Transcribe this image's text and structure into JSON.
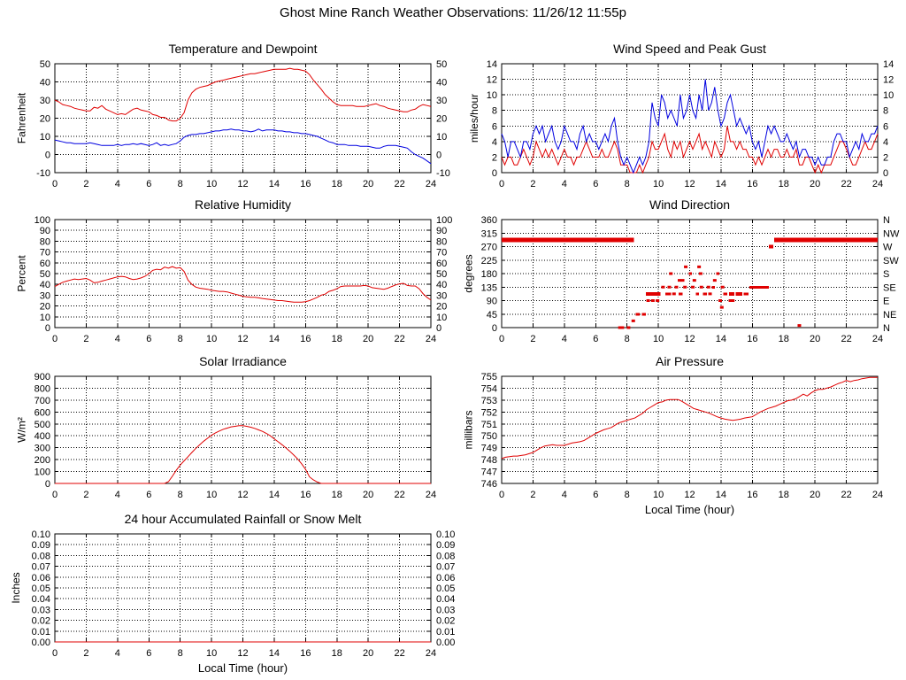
{
  "page": {
    "title": "Ghost Mine Ranch Weather Observations: 11/26/12 11:55p",
    "background": "#ffffff"
  },
  "colors": {
    "red": "#e00000",
    "blue": "#0000e0",
    "axis": "#000000"
  },
  "chart_data": [
    {
      "id": "temperature-dewpoint",
      "type": "line",
      "title": "Temperature and Dewpoint",
      "ylabel": "Fahrenheit",
      "x": {
        "min": 0,
        "max": 24,
        "tick_step": 2
      },
      "y": {
        "min": -10,
        "max": 50,
        "tick_step": 10,
        "decimals": 0
      },
      "mirror": true,
      "grid": true,
      "series": [
        {
          "name": "temperature",
          "color": "#e00000",
          "x_start": 0,
          "x_step": 0.25,
          "values": [
            30,
            29,
            27.5,
            27,
            26.5,
            25.5,
            25,
            24.5,
            24,
            24,
            26,
            25.5,
            27,
            25,
            24,
            23,
            22,
            22.5,
            22,
            23.5,
            25,
            25.5,
            24.5,
            24,
            23.5,
            22,
            21.5,
            20.5,
            20.5,
            19,
            18.5,
            18.5,
            20,
            23,
            30,
            34,
            36,
            37,
            37.5,
            38,
            39,
            40,
            40.5,
            41,
            41.5,
            42,
            42.5,
            43,
            43.5,
            44,
            44.5,
            44.5,
            45,
            45.5,
            46,
            46.5,
            47,
            47,
            47,
            47,
            47.5,
            47,
            47,
            46.5,
            46,
            44,
            41,
            38.5,
            36,
            33,
            31,
            29,
            27.5,
            27,
            27,
            27,
            27,
            26.5,
            26.5,
            26.5,
            27,
            27.5,
            28,
            27,
            26.5,
            25.5,
            25,
            24.5,
            24,
            23.5,
            23.5,
            24.5,
            25,
            26.5,
            27.5,
            27,
            26.5
          ]
        },
        {
          "name": "dewpoint",
          "color": "#0000e0",
          "x_start": 0,
          "x_step": 0.25,
          "values": [
            8,
            7.5,
            7,
            6.5,
            6.5,
            6,
            6,
            6,
            6,
            6.5,
            6,
            5.5,
            5,
            5,
            5,
            5,
            5.5,
            5,
            5.5,
            5.5,
            6,
            5.5,
            6,
            5.5,
            5,
            5.5,
            6.5,
            5,
            5.5,
            5,
            5.5,
            6,
            7.5,
            9.5,
            10.5,
            11,
            11,
            11.5,
            11.5,
            12,
            12.5,
            13,
            13,
            13.5,
            13.5,
            14,
            13.5,
            13.5,
            13,
            13,
            12.5,
            13,
            14,
            13,
            13.5,
            13.5,
            13.5,
            13,
            13,
            12.5,
            12.5,
            12,
            12,
            11.5,
            11.5,
            11,
            10.5,
            10,
            9,
            8,
            7,
            6.5,
            5.5,
            5.5,
            5.5,
            5,
            5,
            5,
            4.5,
            4.5,
            4.5,
            4,
            3.5,
            3.5,
            4.5,
            5,
            5,
            5,
            4.5,
            4,
            3.5,
            1.5,
            0,
            -1,
            -2,
            -3.5,
            -5
          ]
        }
      ]
    },
    {
      "id": "wind-speed-gust",
      "type": "line",
      "title": "Wind Speed and Peak Gust",
      "ylabel": "miles/hour",
      "x": {
        "min": 0,
        "max": 24,
        "tick_step": 2
      },
      "y": {
        "min": 0,
        "max": 14,
        "tick_step": 2,
        "decimals": 0
      },
      "mirror": true,
      "grid": true,
      "series": [
        {
          "name": "wind-speed",
          "color": "#e00000",
          "x_start": 0,
          "x_step": 0.2,
          "values": [
            2,
            1,
            2,
            2,
            1,
            1,
            2,
            3,
            2,
            1,
            2,
            4,
            3,
            2,
            3,
            2,
            3,
            2,
            1,
            2,
            3,
            2,
            2,
            1,
            2,
            2,
            3,
            4,
            3,
            2,
            2,
            2,
            3,
            2,
            2,
            3,
            4,
            3,
            1,
            1,
            1,
            0,
            0,
            0,
            1,
            0,
            1,
            2,
            4,
            3,
            3,
            4,
            5,
            3,
            2,
            4,
            3,
            4,
            2,
            3,
            4,
            3,
            4,
            5,
            3,
            4,
            3,
            2,
            4,
            3,
            2,
            3,
            6,
            4,
            4,
            3,
            4,
            3,
            3,
            2,
            2,
            1,
            2,
            1,
            2,
            3,
            2,
            3,
            3,
            2,
            2,
            3,
            2,
            2,
            3,
            1,
            1,
            2,
            2,
            1,
            0,
            1,
            0,
            1,
            1,
            1,
            2,
            3,
            4,
            4,
            3,
            2,
            1,
            1,
            2,
            3,
            4,
            3,
            3,
            4,
            5
          ]
        },
        {
          "name": "peak-gust",
          "color": "#0000e0",
          "x_start": 0,
          "x_step": 0.2,
          "values": [
            5,
            4,
            2,
            4,
            4,
            3,
            2,
            4,
            4,
            3,
            5,
            6,
            5,
            6,
            4,
            5,
            6,
            4,
            3,
            4,
            6,
            5,
            4,
            4,
            3,
            5,
            6,
            4,
            5,
            4,
            4,
            3,
            4,
            5,
            4,
            6,
            7,
            4,
            2,
            1,
            2,
            1,
            0,
            1,
            2,
            1,
            2,
            4,
            9,
            7,
            6,
            10,
            9,
            7,
            8,
            7,
            6,
            10,
            7,
            8,
            10,
            8,
            7,
            10,
            8,
            12,
            8,
            9,
            11,
            8,
            6,
            7,
            9,
            10,
            8,
            6,
            7,
            6,
            5,
            6,
            4,
            3,
            4,
            2,
            4,
            6,
            5,
            6,
            5,
            4,
            4,
            5,
            4,
            3,
            4,
            2,
            3,
            3,
            2,
            2,
            1,
            2,
            1,
            1,
            2,
            2,
            4,
            5,
            5,
            4,
            4,
            2,
            3,
            4,
            3,
            5,
            4,
            4,
            5,
            5,
            6
          ]
        }
      ]
    },
    {
      "id": "relative-humidity",
      "type": "line",
      "title": "Relative Humidity",
      "ylabel": "Percent",
      "x": {
        "min": 0,
        "max": 24,
        "tick_step": 2
      },
      "y": {
        "min": 0,
        "max": 100,
        "tick_step": 10,
        "decimals": 0
      },
      "mirror": true,
      "grid": true,
      "series": [
        {
          "name": "humidity",
          "color": "#e00000",
          "x_start": 0,
          "x_step": 0.25,
          "values": [
            38,
            40,
            42,
            43,
            44,
            45,
            44.5,
            45,
            45.5,
            44,
            41.5,
            42,
            43,
            44,
            45,
            46,
            47,
            47.5,
            47,
            45.5,
            44.5,
            45,
            46,
            47.5,
            50,
            53,
            54,
            53.5,
            56,
            55,
            56.5,
            55,
            55.5,
            52,
            44,
            40,
            37.5,
            36.5,
            36,
            35.5,
            34.5,
            34,
            33.5,
            33.5,
            33,
            32,
            31,
            30,
            29,
            28.5,
            28,
            28,
            27.5,
            27,
            26.5,
            26,
            25.5,
            25,
            25,
            24.5,
            24,
            23.5,
            23.5,
            23.5,
            24,
            25,
            26.5,
            28,
            30,
            31,
            33.5,
            34.5,
            36,
            38,
            38.5,
            38.5,
            38.5,
            38.5,
            38.5,
            39,
            38.5,
            37,
            36.5,
            36,
            35.5,
            36.5,
            38,
            39.5,
            40.5,
            41,
            39,
            38.5,
            38.5,
            36,
            31.5,
            28,
            25.5
          ]
        }
      ]
    },
    {
      "id": "wind-direction",
      "type": "scatter",
      "title": "Wind Direction",
      "ylabel": "degrees",
      "x": {
        "min": 0,
        "max": 24,
        "tick_step": 2
      },
      "y": {
        "min": 0,
        "max": 360,
        "tick_step": 45,
        "decimals": 0
      },
      "mirror": true,
      "grid": true,
      "right_labels": [
        "N",
        "NE",
        "E",
        "SE",
        "S",
        "SW",
        "W",
        "NW",
        "N"
      ],
      "marker_color": "#e00000",
      "segments": [
        [
          0,
          8.45,
          292.5,
          5
        ],
        [
          17.4,
          24,
          292.5,
          5
        ],
        [
          8.55,
          8.8,
          45,
          3
        ],
        [
          8.95,
          9.2,
          45,
          3
        ],
        [
          9.2,
          10.15,
          112.5,
          4
        ],
        [
          10.45,
          10.8,
          112.5,
          3
        ],
        [
          11.3,
          11.55,
          112.5,
          3
        ],
        [
          12.4,
          12.6,
          112.5,
          3
        ],
        [
          12.85,
          13.1,
          112.5,
          3
        ],
        [
          14.15,
          14.4,
          112.5,
          3
        ],
        [
          14.5,
          14.85,
          112.5,
          4
        ],
        [
          14.95,
          15.35,
          112.5,
          4
        ],
        [
          15.45,
          15.75,
          112.5,
          3
        ],
        [
          15.8,
          17.05,
          135,
          3
        ],
        [
          17.05,
          17.35,
          270,
          4
        ],
        [
          11.95,
          12.15,
          180,
          3
        ],
        [
          13.7,
          13.9,
          180,
          3
        ],
        [
          13.4,
          13.6,
          135,
          3
        ]
      ],
      "points": [
        [
          7.55,
          0
        ],
        [
          7.7,
          0
        ],
        [
          8.1,
          0
        ],
        [
          8.4,
          22.5
        ],
        [
          9.35,
          90
        ],
        [
          9.65,
          90
        ],
        [
          9.95,
          90
        ],
        [
          10.3,
          135
        ],
        [
          10.7,
          135
        ],
        [
          10.8,
          180
        ],
        [
          11.0,
          112.5
        ],
        [
          11.15,
          135
        ],
        [
          11.35,
          157.5
        ],
        [
          11.55,
          157.5
        ],
        [
          11.7,
          135
        ],
        [
          11.75,
          202.5
        ],
        [
          12.2,
          135
        ],
        [
          12.3,
          157.5
        ],
        [
          12.6,
          202.5
        ],
        [
          12.7,
          180
        ],
        [
          12.75,
          135
        ],
        [
          13.2,
          135
        ],
        [
          13.3,
          112.5
        ],
        [
          13.6,
          157.5
        ],
        [
          13.95,
          90
        ],
        [
          14.05,
          67.5
        ],
        [
          14.1,
          135
        ],
        [
          14.6,
          90
        ],
        [
          14.75,
          90
        ],
        [
          19.0,
          7
        ]
      ]
    },
    {
      "id": "solar-irradiance",
      "type": "line",
      "title": "Solar Irradiance",
      "ylabel": "W/m²",
      "x": {
        "min": 0,
        "max": 24,
        "tick_step": 2
      },
      "y": {
        "min": 0,
        "max": 900,
        "tick_step": 100,
        "decimals": 0
      },
      "mirror": false,
      "grid": true,
      "series": [
        {
          "name": "solar",
          "color": "#e00000",
          "x_start": 0,
          "x_step": 0.25,
          "values": [
            0,
            0,
            0,
            0,
            0,
            0,
            0,
            0,
            0,
            0,
            0,
            0,
            0,
            0,
            0,
            0,
            0,
            0,
            0,
            0,
            0,
            0,
            0,
            0,
            0,
            0,
            0,
            0,
            0,
            15,
            60,
            110,
            155,
            190,
            225,
            260,
            295,
            325,
            355,
            380,
            405,
            425,
            440,
            455,
            465,
            475,
            480,
            485,
            485,
            480,
            472,
            463,
            450,
            437,
            420,
            400,
            375,
            350,
            325,
            298,
            270,
            238,
            205,
            165,
            120,
            55,
            30,
            12,
            0,
            0,
            0,
            0,
            0,
            0,
            0,
            0,
            0,
            0,
            0,
            0,
            0,
            0,
            0,
            0,
            0,
            0,
            0,
            0,
            0,
            0,
            0,
            0,
            0,
            0,
            0,
            0,
            0
          ]
        }
      ]
    },
    {
      "id": "air-pressure",
      "type": "line",
      "title": "Air Pressure",
      "ylabel": "millibars",
      "xlabel": "Local Time (hour)",
      "x": {
        "min": 0,
        "max": 24,
        "tick_step": 2
      },
      "y": {
        "min": 746,
        "max": 755,
        "tick_step": 1,
        "decimals": 0
      },
      "mirror": false,
      "grid": true,
      "series": [
        {
          "name": "pressure",
          "color": "#e00000",
          "x_start": 0,
          "x_step": 0.25,
          "values": [
            748.1,
            748.2,
            748.25,
            748.3,
            748.3,
            748.35,
            748.4,
            748.5,
            748.6,
            748.8,
            749.0,
            749.15,
            749.2,
            749.25,
            749.2,
            749.2,
            749.2,
            749.3,
            749.4,
            749.45,
            749.5,
            749.6,
            749.8,
            750.0,
            750.2,
            750.35,
            750.5,
            750.6,
            750.7,
            750.9,
            751.1,
            751.2,
            751.3,
            751.4,
            751.5,
            751.7,
            751.9,
            752.2,
            752.4,
            752.6,
            752.8,
            752.85,
            753.0,
            753.05,
            753.05,
            753.05,
            752.9,
            752.7,
            752.5,
            752.3,
            752.2,
            752.1,
            752.0,
            751.9,
            751.75,
            751.6,
            751.5,
            751.4,
            751.35,
            751.3,
            751.35,
            751.4,
            751.5,
            751.55,
            751.6,
            751.8,
            752.0,
            752.15,
            752.3,
            752.4,
            752.5,
            752.65,
            752.8,
            752.95,
            753.0,
            753.1,
            753.3,
            753.5,
            753.35,
            753.6,
            753.8,
            753.9,
            753.9,
            754.0,
            754.1,
            754.25,
            754.4,
            754.5,
            754.65,
            754.55,
            754.65,
            754.7,
            754.8,
            754.85,
            754.9,
            754.9,
            754.9
          ]
        }
      ]
    },
    {
      "id": "rainfall",
      "type": "line",
      "title": "24 hour Accumulated Rainfall or Snow Melt",
      "ylabel": "Inches",
      "xlabel": "Local Time (hour)",
      "x": {
        "min": 0,
        "max": 24,
        "tick_step": 2
      },
      "y": {
        "min": 0,
        "max": 0.1,
        "tick_step": 0.01,
        "decimals": 2
      },
      "mirror": true,
      "grid": true,
      "series": [
        {
          "name": "rainfall",
          "color": "#e00000",
          "x_start": 0,
          "x_step": 12,
          "values": [
            0,
            0,
            0
          ]
        }
      ]
    }
  ]
}
